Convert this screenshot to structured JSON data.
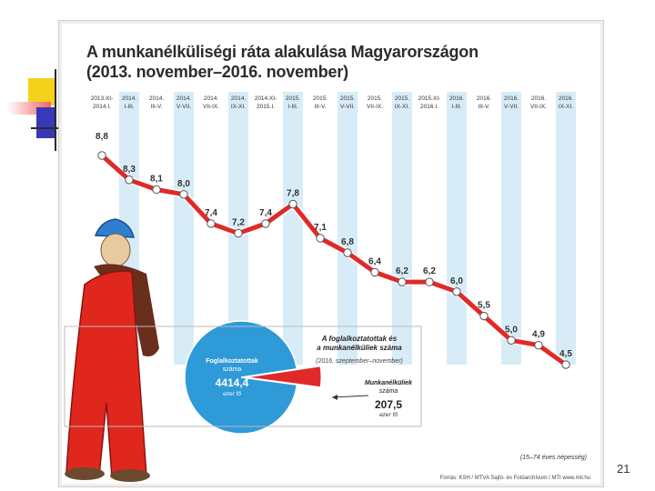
{
  "slide_number": "21",
  "chart_data": {
    "type": "line",
    "title": "A munkanélküliségi ráta alakulása Magyarországon",
    "subtitle": "(2013. november–2016. november)",
    "categories": [
      [
        "2013.XI-",
        "2014.I."
      ],
      [
        "2014.",
        "I-III."
      ],
      [
        "2014.",
        "III-V."
      ],
      [
        "2014.",
        "V-VII."
      ],
      [
        "2014.",
        "VII-IX."
      ],
      [
        "2014.",
        "IX-XI."
      ],
      [
        "2014.XI-",
        "2015.I."
      ],
      [
        "2015.",
        "I-III."
      ],
      [
        "2015.",
        "III-V."
      ],
      [
        "2015.",
        "V-VII."
      ],
      [
        "2015.",
        "VII-IX."
      ],
      [
        "2015.",
        "IX-XI."
      ],
      [
        "2015.XI-",
        "2016.I."
      ],
      [
        "2016.",
        "I-III."
      ],
      [
        "2016.",
        "III-V."
      ],
      [
        "2016.",
        "V-VII."
      ],
      [
        "2016.",
        "VII-IX."
      ],
      [
        "2016.",
        "IX-XI."
      ]
    ],
    "values": [
      8.8,
      8.3,
      8.1,
      8.0,
      7.4,
      7.2,
      7.4,
      7.8,
      7.1,
      6.8,
      6.4,
      6.2,
      6.2,
      6.0,
      5.5,
      5.0,
      4.9,
      4.5
    ],
    "value_labels": [
      "8,8",
      "8,3",
      "8,1",
      "8,0",
      "7,4",
      "7,2",
      "7,4",
      "7,8",
      "7,1",
      "6,8",
      "6,4",
      "6,2",
      "6,2",
      "6,0",
      "5,5",
      "5,0",
      "4,9",
      "4,5"
    ],
    "grid": true,
    "colors": {
      "line": "#e02a2a",
      "column": "#d8ecf8",
      "marker": "#ffffff"
    }
  },
  "pie": {
    "title": [
      "A foglalkoztatottak és",
      "a munkanélküliek száma"
    ],
    "period": "(2016. szeptember–november)",
    "employed_label": [
      "Foglalkoztatottak",
      "száma"
    ],
    "employed_value": "4414,4",
    "employed_unit": "ezer fő",
    "unemployed_label": [
      "Munkanélküliek",
      "száma"
    ],
    "unemployed_value": "207,5",
    "unemployed_unit": "ezer fő",
    "values": [
      4414.4,
      207.5
    ],
    "colors": {
      "employed": "#2e9ad8",
      "unemployed": "#e02a2a"
    }
  },
  "note": "(15–74 éves népesség)",
  "credit": "Forrás: KSH / MTVA Sajtó- és Fotóarchívum / MTI   www.mti.hu"
}
